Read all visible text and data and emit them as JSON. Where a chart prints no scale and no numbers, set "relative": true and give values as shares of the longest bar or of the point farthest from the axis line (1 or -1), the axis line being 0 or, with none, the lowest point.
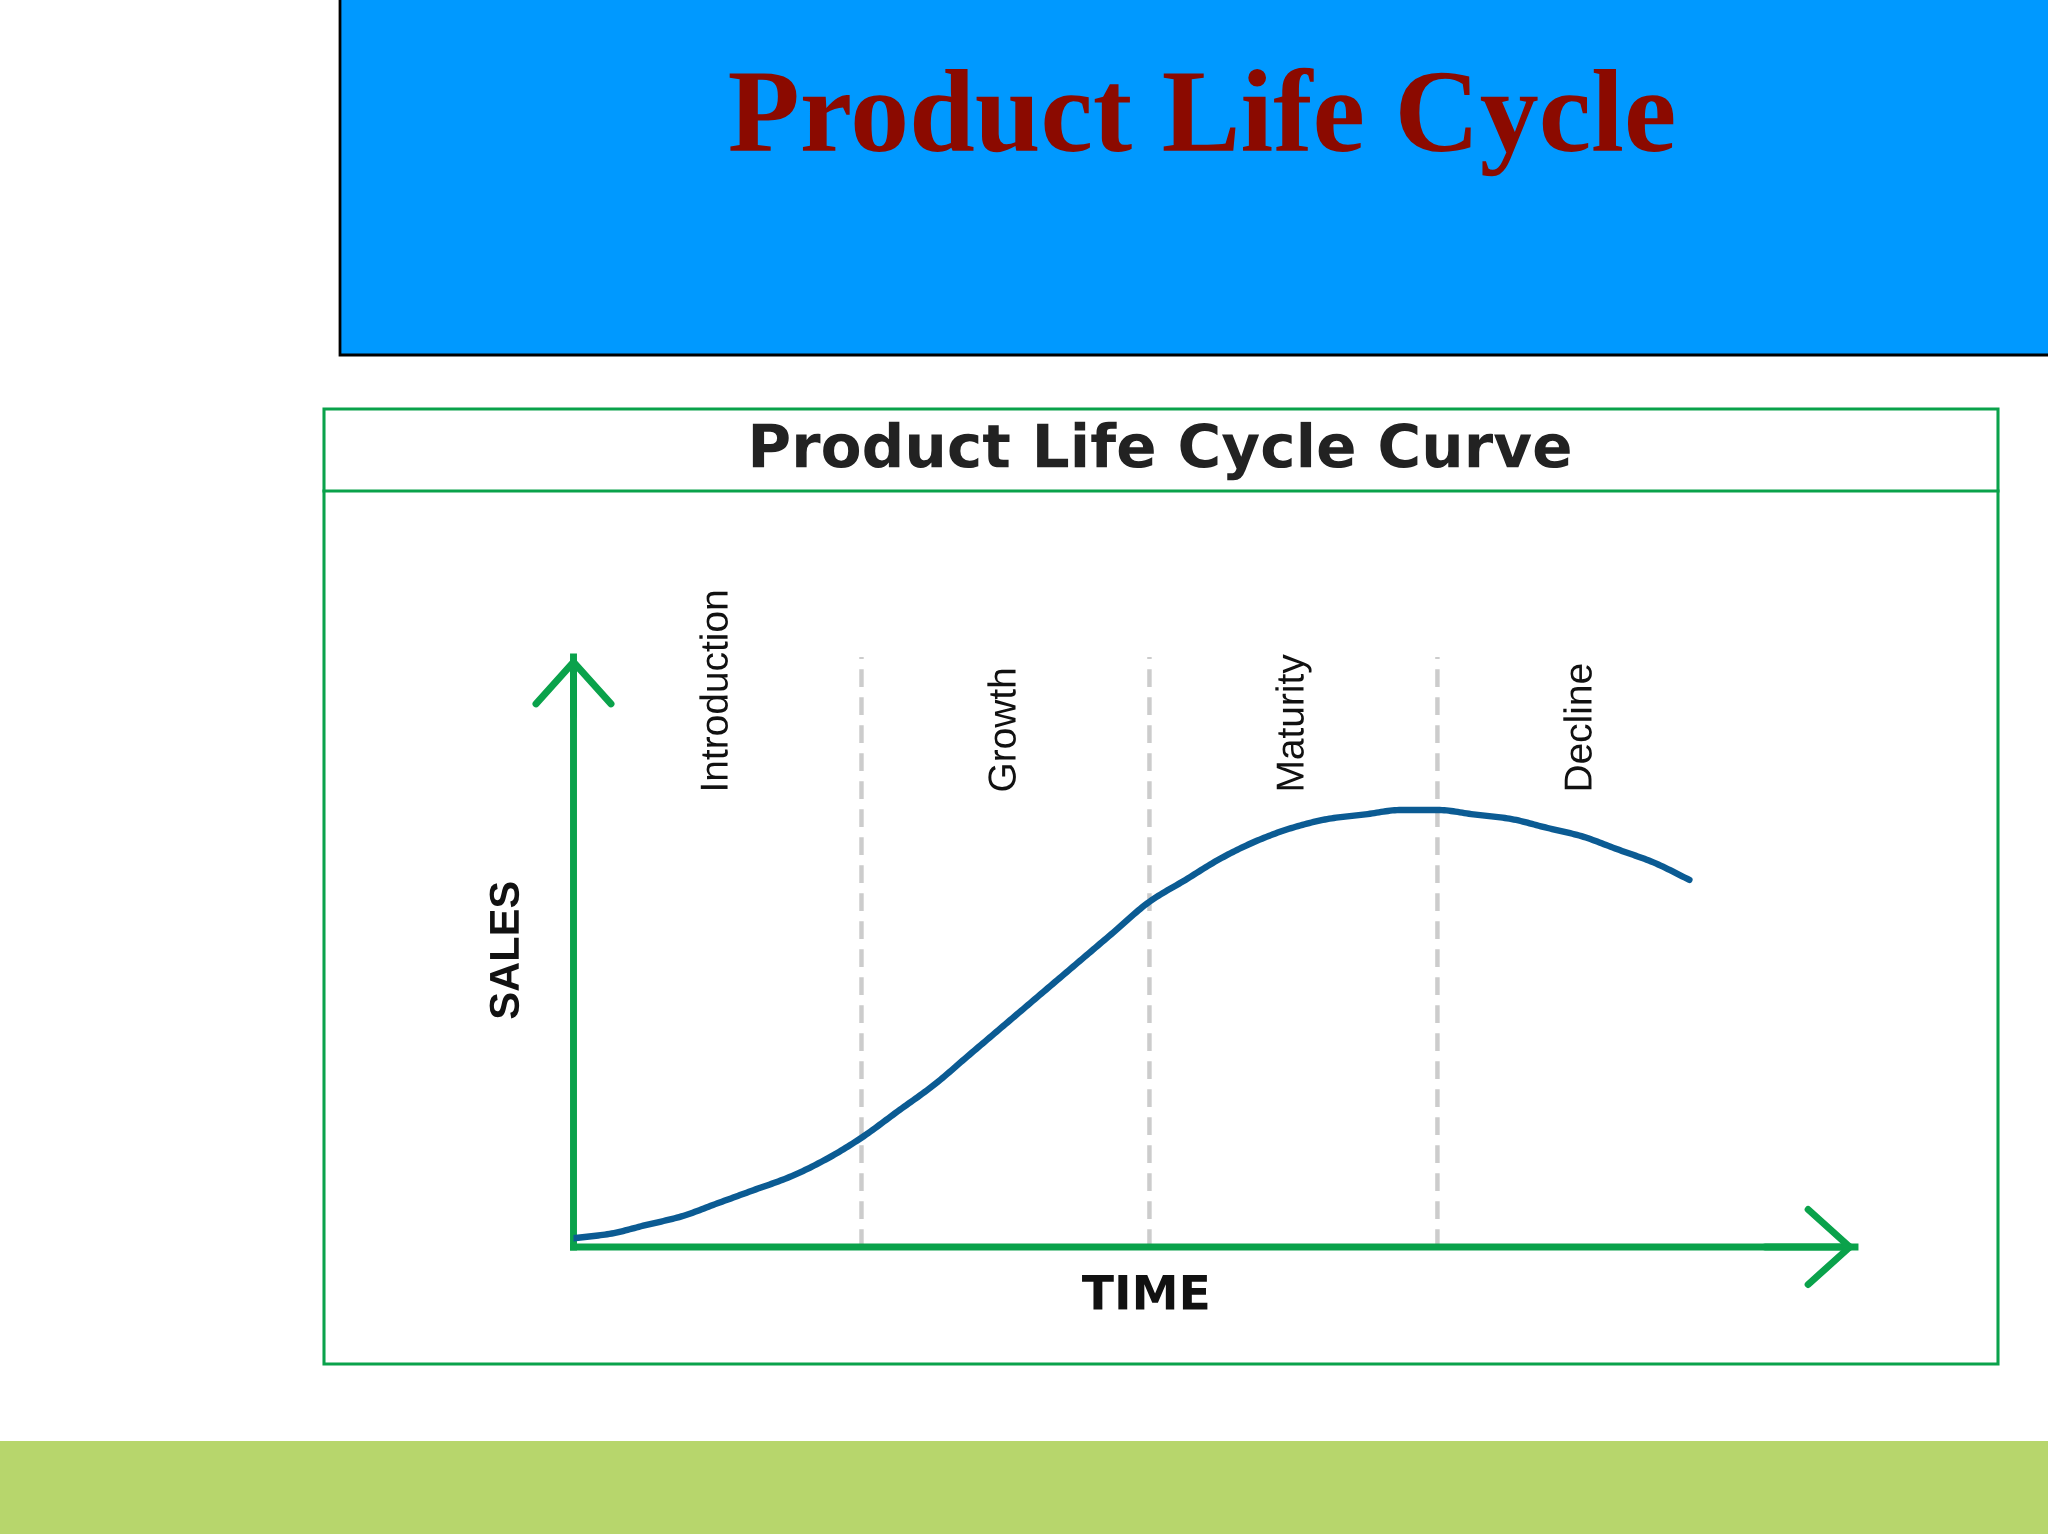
{
  "chart_data": {
    "type": "line",
    "title": "Product Life Cycle",
    "subtitle": "Product Life Cycle Curve",
    "xlabel": "TIME",
    "ylabel": "SALES",
    "relative": true,
    "categories": [
      null,
      null,
      null,
      null,
      "Introduction",
      null,
      null,
      null,
      null,
      null,
      null,
      null,
      "Growth",
      null,
      null,
      null,
      null,
      null,
      null,
      null,
      "Maturity",
      null,
      null,
      null,
      null,
      null,
      null,
      null,
      "Decline",
      null,
      null,
      null
    ],
    "series": [
      {
        "color": "#0b5b93",
        "values": [
          0.02,
          0.03,
          0.05,
          0.07,
          0.1,
          0.13,
          0.16,
          0.2,
          0.25,
          0.31,
          0.37,
          0.44,
          0.51,
          0.58,
          0.65,
          0.72,
          0.79,
          0.84,
          0.89,
          0.93,
          0.96,
          0.98,
          0.99,
          1.0,
          1.0,
          0.99,
          0.98,
          0.96,
          0.94,
          0.91,
          0.88,
          0.84
        ]
      }
    ],
    "grid": "x",
    "tick_labels": "x",
    "marker": "none",
    "line_style": "solid"
  }
}
